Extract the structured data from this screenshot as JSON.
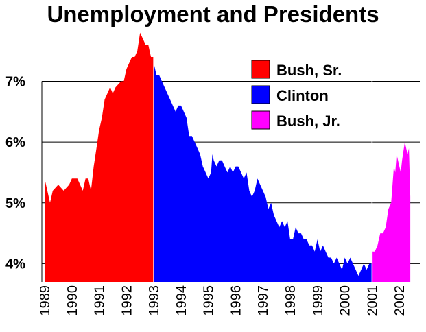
{
  "chart_data": {
    "type": "area",
    "title": "Unemployment and Presidents",
    "xlabel": "",
    "ylabel": "",
    "x_range": [
      1988.9,
      2002.75
    ],
    "ylim": [
      3.7,
      7.75
    ],
    "y_ticks": [
      {
        "value": 7,
        "label": "7%"
      },
      {
        "value": 6,
        "label": "6%"
      },
      {
        "value": 5,
        "label": "5%"
      },
      {
        "value": 4,
        "label": "4%"
      }
    ],
    "x_ticks": [
      "1989",
      "1990",
      "1991",
      "1992",
      "1993",
      "1994",
      "1995",
      "1996",
      "1997",
      "1998",
      "1999",
      "2000",
      "2001",
      "2002"
    ],
    "grid": "horizontal",
    "legend_position": "top-right",
    "series": [
      {
        "name": "Bush, Sr.",
        "color": "#ff0000",
        "points": [
          [
            1989.0,
            5.4
          ],
          [
            1989.1,
            5.2
          ],
          [
            1989.2,
            5.0
          ],
          [
            1989.3,
            5.2
          ],
          [
            1989.5,
            5.3
          ],
          [
            1989.7,
            5.2
          ],
          [
            1989.9,
            5.3
          ],
          [
            1990.0,
            5.4
          ],
          [
            1990.2,
            5.4
          ],
          [
            1990.4,
            5.2
          ],
          [
            1990.5,
            5.4
          ],
          [
            1990.6,
            5.4
          ],
          [
            1990.7,
            5.2
          ],
          [
            1990.8,
            5.6
          ],
          [
            1990.9,
            5.9
          ],
          [
            1991.0,
            6.2
          ],
          [
            1991.1,
            6.4
          ],
          [
            1991.2,
            6.7
          ],
          [
            1991.3,
            6.8
          ],
          [
            1991.4,
            6.9
          ],
          [
            1991.5,
            6.8
          ],
          [
            1991.6,
            6.9
          ],
          [
            1991.8,
            7.0
          ],
          [
            1991.9,
            7.0
          ],
          [
            1992.0,
            7.2
          ],
          [
            1992.1,
            7.3
          ],
          [
            1992.2,
            7.4
          ],
          [
            1992.3,
            7.4
          ],
          [
            1992.4,
            7.5
          ],
          [
            1992.5,
            7.8
          ],
          [
            1992.6,
            7.7
          ],
          [
            1992.7,
            7.6
          ],
          [
            1992.8,
            7.6
          ],
          [
            1992.85,
            7.5
          ],
          [
            1992.9,
            7.4
          ],
          [
            1993.0,
            7.4
          ]
        ]
      },
      {
        "name": "Clinton",
        "color": "#0000ff",
        "points": [
          [
            1993.0,
            7.3
          ],
          [
            1993.1,
            7.1
          ],
          [
            1993.2,
            7.1
          ],
          [
            1993.3,
            7.0
          ],
          [
            1993.5,
            6.8
          ],
          [
            1993.6,
            6.7
          ],
          [
            1993.8,
            6.5
          ],
          [
            1993.9,
            6.6
          ],
          [
            1994.0,
            6.6
          ],
          [
            1994.1,
            6.5
          ],
          [
            1994.2,
            6.4
          ],
          [
            1994.3,
            6.1
          ],
          [
            1994.4,
            6.1
          ],
          [
            1994.5,
            6.0
          ],
          [
            1994.6,
            5.9
          ],
          [
            1994.7,
            5.8
          ],
          [
            1994.8,
            5.6
          ],
          [
            1994.9,
            5.5
          ],
          [
            1995.0,
            5.4
          ],
          [
            1995.1,
            5.5
          ],
          [
            1995.15,
            5.8
          ],
          [
            1995.2,
            5.7
          ],
          [
            1995.3,
            5.6
          ],
          [
            1995.4,
            5.7
          ],
          [
            1995.5,
            5.7
          ],
          [
            1995.6,
            5.6
          ],
          [
            1995.7,
            5.5
          ],
          [
            1995.8,
            5.6
          ],
          [
            1995.9,
            5.5
          ],
          [
            1996.0,
            5.6
          ],
          [
            1996.1,
            5.6
          ],
          [
            1996.2,
            5.5
          ],
          [
            1996.3,
            5.4
          ],
          [
            1996.4,
            5.5
          ],
          [
            1996.5,
            5.2
          ],
          [
            1996.6,
            5.1
          ],
          [
            1996.7,
            5.2
          ],
          [
            1996.8,
            5.4
          ],
          [
            1996.9,
            5.3
          ],
          [
            1997.0,
            5.2
          ],
          [
            1997.1,
            5.1
          ],
          [
            1997.2,
            4.9
          ],
          [
            1997.3,
            5.0
          ],
          [
            1997.4,
            4.8
          ],
          [
            1997.5,
            4.7
          ],
          [
            1997.6,
            4.6
          ],
          [
            1997.7,
            4.7
          ],
          [
            1997.8,
            4.6
          ],
          [
            1997.9,
            4.7
          ],
          [
            1998.0,
            4.4
          ],
          [
            1998.1,
            4.4
          ],
          [
            1998.2,
            4.6
          ],
          [
            1998.3,
            4.5
          ],
          [
            1998.4,
            4.5
          ],
          [
            1998.5,
            4.4
          ],
          [
            1998.6,
            4.4
          ],
          [
            1998.7,
            4.3
          ],
          [
            1998.8,
            4.3
          ],
          [
            1998.9,
            4.2
          ],
          [
            1999.0,
            4.4
          ],
          [
            1999.1,
            4.2
          ],
          [
            1999.2,
            4.3
          ],
          [
            1999.3,
            4.2
          ],
          [
            1999.4,
            4.1
          ],
          [
            1999.5,
            4.1
          ],
          [
            1999.6,
            4.0
          ],
          [
            1999.7,
            4.1
          ],
          [
            1999.8,
            4.0
          ],
          [
            1999.9,
            3.9
          ],
          [
            2000.0,
            4.1
          ],
          [
            2000.1,
            4.0
          ],
          [
            2000.2,
            4.1
          ],
          [
            2000.3,
            4.0
          ],
          [
            2000.4,
            3.9
          ],
          [
            2000.5,
            3.8
          ],
          [
            2000.6,
            3.9
          ],
          [
            2000.7,
            4.0
          ],
          [
            2000.8,
            3.9
          ],
          [
            2000.9,
            4.0
          ],
          [
            2001.0,
            4.0
          ]
        ]
      },
      {
        "name": "Bush, Jr.",
        "color": "#ff00ff",
        "points": [
          [
            2001.0,
            4.2
          ],
          [
            2001.1,
            4.2
          ],
          [
            2001.2,
            4.3
          ],
          [
            2001.3,
            4.5
          ],
          [
            2001.4,
            4.5
          ],
          [
            2001.5,
            4.6
          ],
          [
            2001.6,
            4.9
          ],
          [
            2001.7,
            5.0
          ],
          [
            2001.75,
            5.3
          ],
          [
            2001.8,
            5.6
          ],
          [
            2001.85,
            5.5
          ],
          [
            2001.9,
            5.8
          ],
          [
            2002.0,
            5.6
          ],
          [
            2002.05,
            5.5
          ],
          [
            2002.1,
            5.7
          ],
          [
            2002.2,
            6.0
          ],
          [
            2002.3,
            5.8
          ],
          [
            2002.35,
            5.9
          ],
          [
            2002.4,
            5.1
          ]
        ]
      }
    ]
  }
}
